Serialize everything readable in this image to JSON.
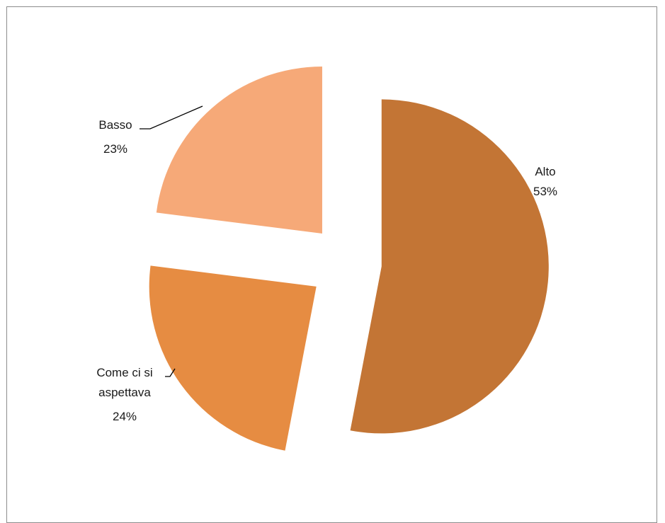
{
  "chart_data": {
    "type": "pie",
    "title": "",
    "slices": [
      {
        "name": "Alto",
        "value": 53,
        "label": "53%",
        "color": "#C37535"
      },
      {
        "name": "Come ci si aspettava",
        "value": 24,
        "label": "24%",
        "color": "#E68C42"
      },
      {
        "name": "Basso",
        "value": 23,
        "label": "23%",
        "color": "#F6A978"
      }
    ],
    "legend": "none",
    "exploded": true,
    "label_style": "category name and percentage beside each slice"
  }
}
